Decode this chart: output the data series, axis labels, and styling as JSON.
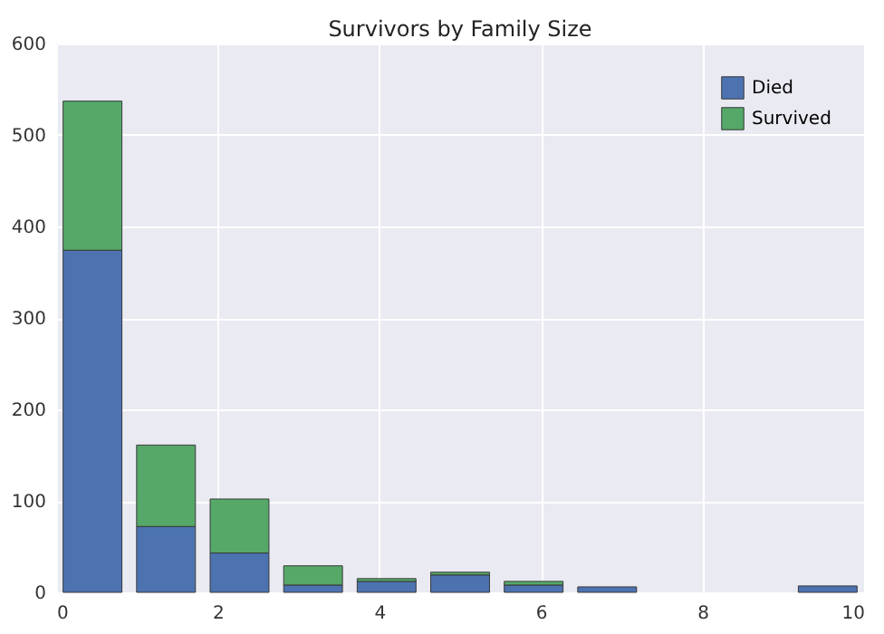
{
  "chart_data": {
    "type": "bar",
    "title": "Survivors by Family Size",
    "x": [
      0.45,
      1.36,
      2.27,
      3.18,
      4.09,
      5,
      5.91,
      6.82,
      7.73,
      8.64,
      9.55
    ],
    "stacked": true,
    "series": [
      {
        "name": "Died",
        "color": "#4c72b0",
        "values": [
          374,
          72,
          43,
          8,
          12,
          19,
          8,
          6,
          0,
          0,
          7
        ]
      },
      {
        "name": "Survived",
        "color": "#55a868",
        "values": [
          163,
          89,
          59,
          21,
          3,
          3,
          4,
          0,
          0,
          0,
          0
        ]
      }
    ],
    "xlim": [
      0,
      10
    ],
    "xticks": [
      0,
      2,
      4,
      6,
      8,
      10
    ],
    "ylim": [
      0,
      600
    ],
    "yticks": [
      0,
      100,
      200,
      300,
      400,
      500,
      600
    ],
    "grid": true,
    "legend": "top right"
  }
}
